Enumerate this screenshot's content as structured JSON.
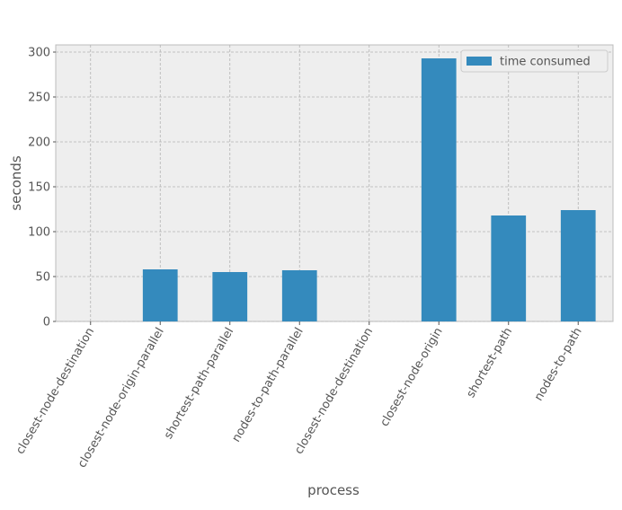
{
  "chart_data": {
    "type": "bar",
    "categories": [
      "closest-node-destination",
      "closest-node-origin-parallel",
      "shortest-path-parallel",
      "nodes-to-path-parallel",
      "closest-node-destination",
      "closest-node-origin",
      "shortest-path",
      "nodes-to-path"
    ],
    "series": [
      {
        "name": "time consumed",
        "color": "#348abd",
        "values": [
          0,
          58,
          55,
          57,
          0,
          293,
          118,
          124
        ]
      }
    ],
    "xlabel": "process",
    "ylabel": "seconds",
    "ylim": [
      0,
      308
    ],
    "yticks": [
      0,
      50,
      100,
      150,
      200,
      250,
      300
    ],
    "grid": true,
    "legend": "upper right"
  }
}
